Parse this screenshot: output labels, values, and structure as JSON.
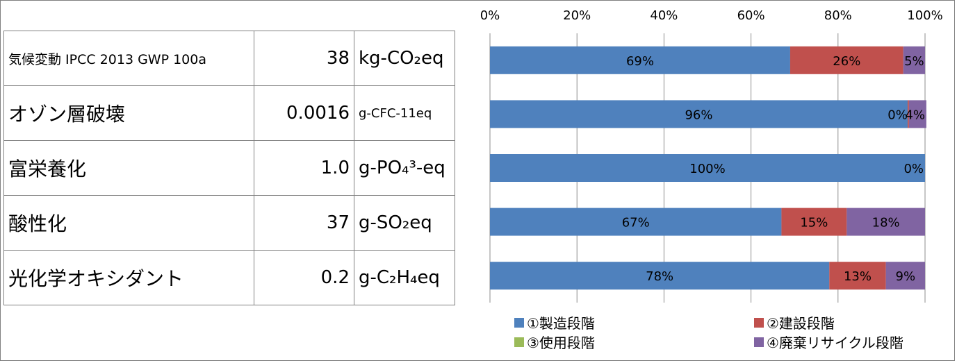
{
  "indicators": [
    {
      "name": "気候変動 IPCC 2013 GWP 100a",
      "value": "38",
      "unit": "kg-CO₂eq"
    },
    {
      "name": "オゾン層破壊",
      "value": "0.0016",
      "unit": "g-CFC-11eq"
    },
    {
      "name": "富栄養化",
      "value": "1.0",
      "unit": "g-PO₄³-eq"
    },
    {
      "name": "酸性化",
      "value": "37",
      "unit": "g-SO₂eq"
    },
    {
      "name": "光化学オキシダント",
      "value": "0.2",
      "unit": "g-C₂H₄eq"
    }
  ],
  "chart_data": {
    "type": "bar",
    "orientation": "horizontal",
    "stacked": "100%",
    "categories": [
      "気候変動 IPCC 2013 GWP 100a",
      "オゾン層破壊",
      "富栄養化",
      "酸性化",
      "光化学オキシダント"
    ],
    "series": [
      {
        "name": "①製造段階",
        "color": "#4f81bd",
        "values": [
          69,
          96,
          100,
          67,
          78
        ],
        "labels": [
          "69%",
          "96%",
          "100%",
          "67%",
          "78%"
        ]
      },
      {
        "name": "②建設段階",
        "color": "#c0504d",
        "values": [
          26,
          0.3,
          0,
          15,
          13
        ],
        "labels": [
          "26%",
          "0%",
          "0%",
          "15%",
          "13%"
        ]
      },
      {
        "name": "③使用段階",
        "color": "#9bbb59",
        "values": [
          0,
          0,
          0,
          0,
          0
        ],
        "labels": [
          "",
          "",
          "",
          "",
          ""
        ]
      },
      {
        "name": "④廃棄リサイクル段階",
        "color": "#8064a2",
        "values": [
          5,
          4,
          0,
          18,
          9
        ],
        "labels": [
          "5%",
          "4%",
          "",
          "18%",
          "9%"
        ]
      }
    ],
    "xaxis_ticks": [
      "0%",
      "20%",
      "40%",
      "60%",
      "80%",
      "100%"
    ],
    "xlim": [
      0,
      100
    ],
    "grid": true,
    "legend_position": "bottom"
  }
}
